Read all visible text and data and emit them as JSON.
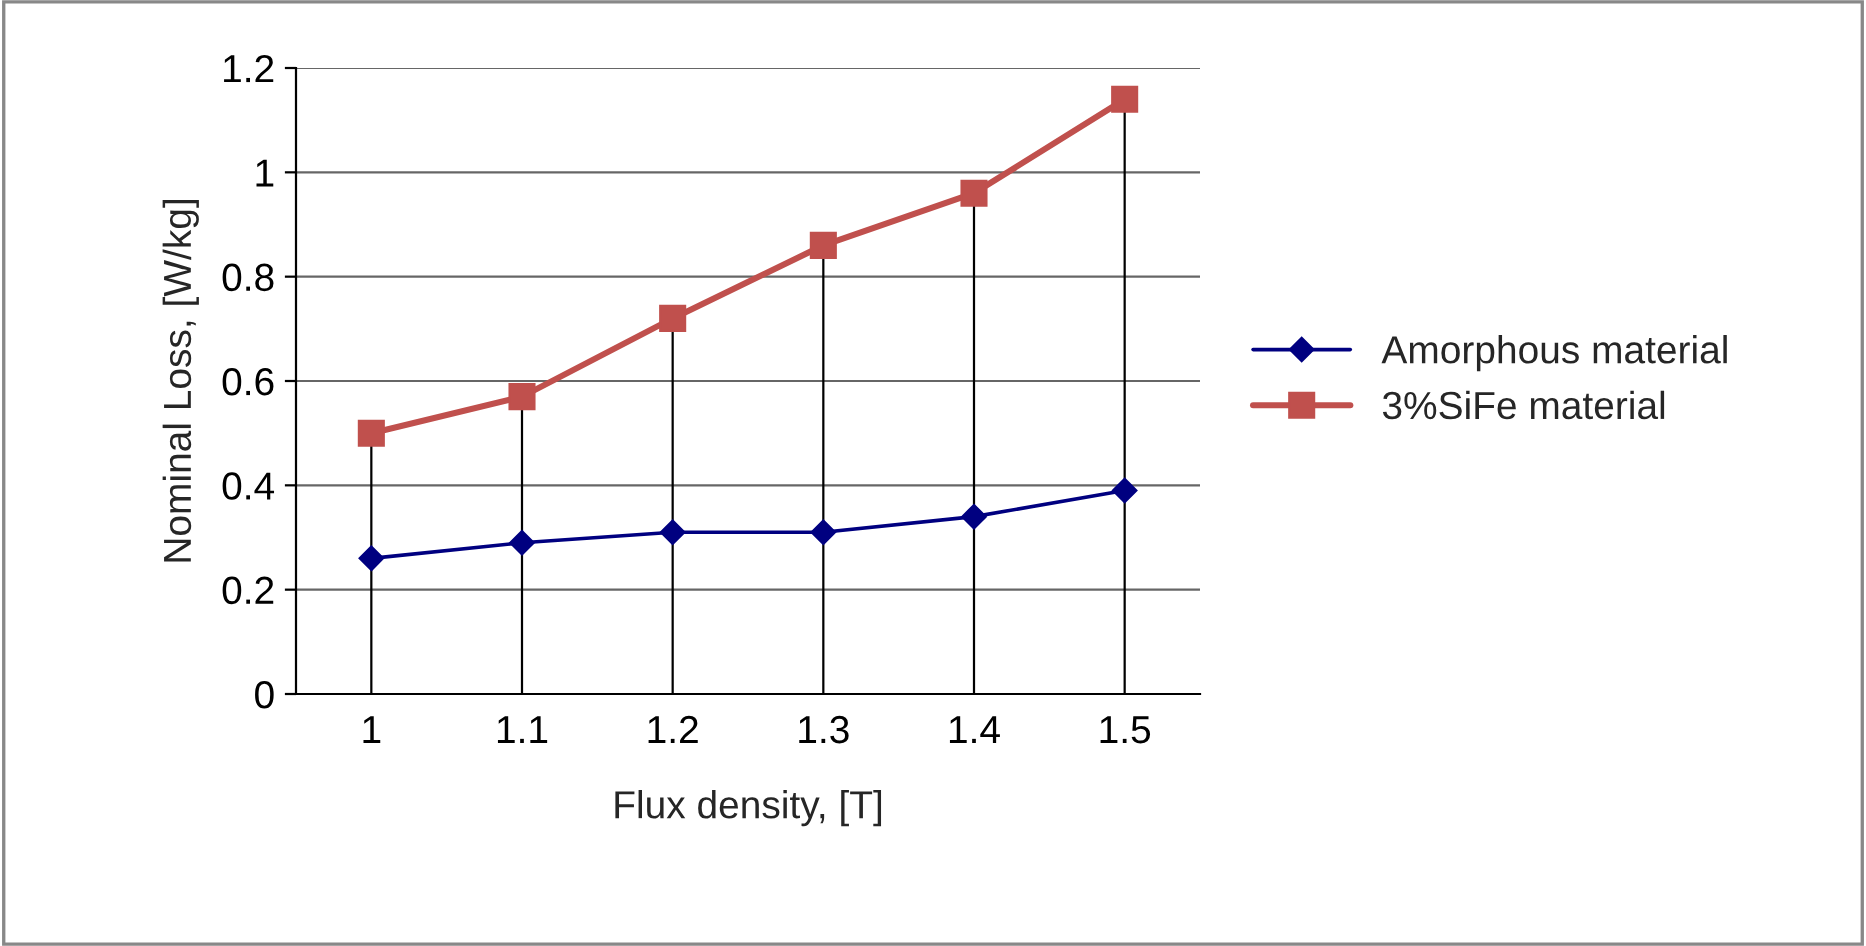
{
  "chart_data": {
    "type": "line",
    "xlabel": "Flux density, [T]",
    "ylabel": "Nominal Loss, [W/kg]",
    "categories": [
      "1",
      "1.1",
      "1.2",
      "1.3",
      "1.4",
      "1.5"
    ],
    "series": [
      {
        "name": "Amorphous material",
        "color": "#000080",
        "marker": "diamond",
        "values": [
          0.26,
          0.29,
          0.31,
          0.31,
          0.34,
          0.39
        ]
      },
      {
        "name": "3%SiFe material",
        "color": "#c0504d",
        "marker": "square",
        "values": [
          0.5,
          0.57,
          0.72,
          0.86,
          0.96,
          1.14
        ]
      }
    ],
    "ylim": [
      0,
      1.2
    ],
    "yticks": [
      0,
      0.2,
      0.4,
      0.6,
      0.8,
      1,
      1.2
    ],
    "grid": true,
    "legend": "right",
    "line_style": "solid"
  }
}
